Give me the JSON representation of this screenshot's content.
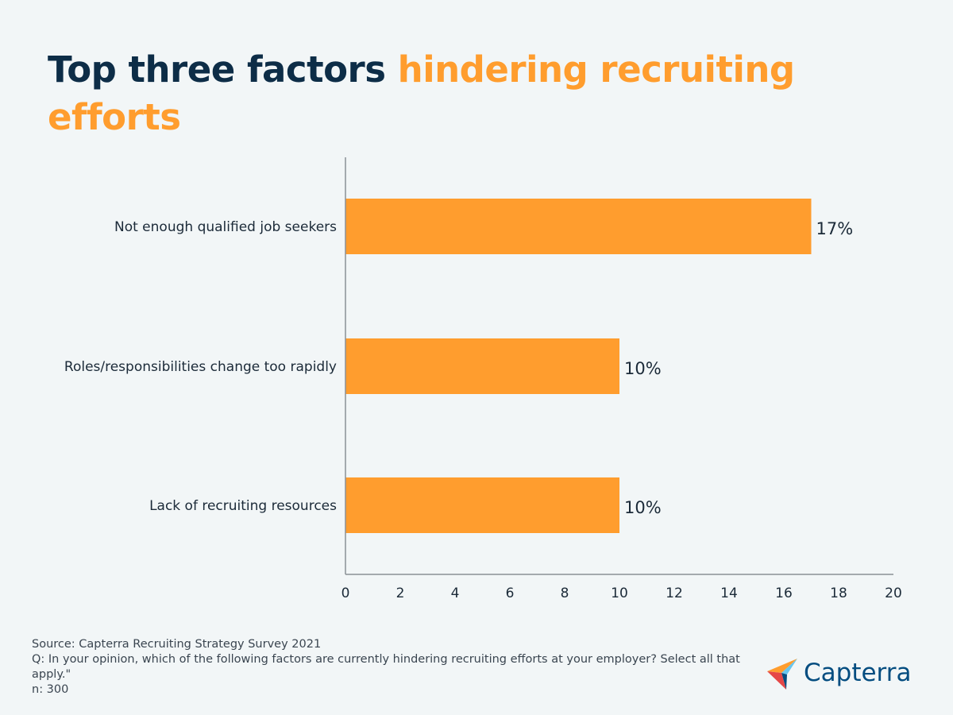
{
  "title": {
    "part1": "Top three factors",
    "part2": "hindering recruiting efforts"
  },
  "colors": {
    "background": "#f2f6f7",
    "title_dark": "#0d2d47",
    "accent": "#ff9d2e",
    "bar": "#ff9d2e",
    "brand": "#044d80"
  },
  "chart_data": {
    "type": "bar",
    "orientation": "horizontal",
    "categories": [
      "Not enough qualified job seekers",
      "Roles/responsibilities change too rapidly",
      "Lack of recruiting resources"
    ],
    "values": [
      17,
      10,
      10
    ],
    "value_labels": [
      "17%",
      "10%",
      "10%"
    ],
    "xlim": [
      0,
      20
    ],
    "x_ticks": [
      "0",
      "2",
      "4",
      "6",
      "8",
      "10",
      "12",
      "14",
      "16",
      "18",
      "20"
    ],
    "grid": false,
    "legend": "none"
  },
  "footer": {
    "source": "Source: Capterra Recruiting Strategy Survey 2021",
    "question": "Q: In your opinion, which of the following factors are currently hindering recruiting efforts at your employer? Select all that apply.\"",
    "n": "n: 300"
  },
  "logo": {
    "text": "Capterra",
    "icon": "capterra-arrow-icon"
  }
}
